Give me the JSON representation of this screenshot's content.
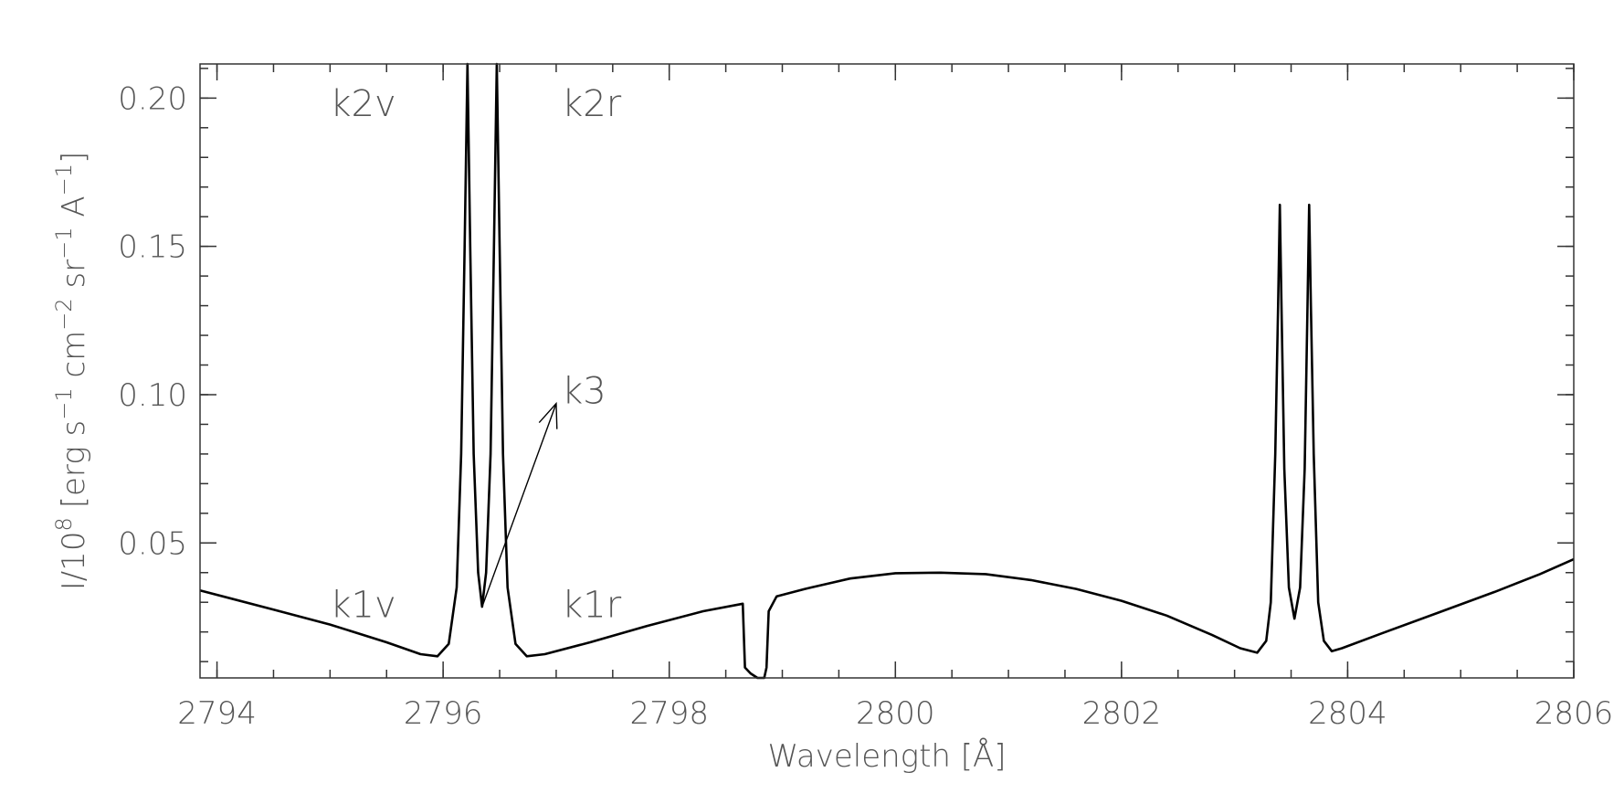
{
  "chart_data": {
    "type": "line",
    "title": "",
    "xlabel": "Wavelength [Å]",
    "ylabel": {
      "base": "I/10",
      "exp": "8",
      "units": "[erg s-1 cm-2 sr-1 A-1]"
    },
    "xlim": [
      2793.85,
      2806.0
    ],
    "ylim": [
      0.0045,
      0.2115
    ],
    "x_ticks": [
      {
        "value": 2794,
        "label": "2794"
      },
      {
        "value": 2796,
        "label": "2796"
      },
      {
        "value": 2798,
        "label": "2798"
      },
      {
        "value": 2800,
        "label": "2800"
      },
      {
        "value": 2802,
        "label": "2802"
      },
      {
        "value": 2804,
        "label": "2804"
      },
      {
        "value": 2806,
        "label": "2806"
      }
    ],
    "x_minor_step": 0.5,
    "y_ticks": [
      {
        "value": 0.05,
        "label": "0.05"
      },
      {
        "value": 0.1,
        "label": "0.10"
      },
      {
        "value": 0.15,
        "label": "0.15"
      },
      {
        "value": 0.2,
        "label": "0.20"
      }
    ],
    "y_minor_step": 0.01,
    "grid": false,
    "series": [
      {
        "points": [
          [
            2793.85,
            0.034
          ],
          [
            2794.5,
            0.0275
          ],
          [
            2795.0,
            0.0225
          ],
          [
            2795.5,
            0.0165
          ],
          [
            2795.8,
            0.0125
          ],
          [
            2795.95,
            0.0118
          ],
          [
            2796.05,
            0.016
          ],
          [
            2796.12,
            0.035
          ],
          [
            2796.16,
            0.08
          ],
          [
            2796.19,
            0.15
          ],
          [
            2796.215,
            0.2115
          ],
          [
            2796.24,
            0.15
          ],
          [
            2796.27,
            0.08
          ],
          [
            2796.31,
            0.04
          ],
          [
            2796.345,
            0.0285
          ],
          [
            2796.38,
            0.04
          ],
          [
            2796.42,
            0.08
          ],
          [
            2796.45,
            0.15
          ],
          [
            2796.475,
            0.2115
          ],
          [
            2796.5,
            0.15
          ],
          [
            2796.53,
            0.08
          ],
          [
            2796.57,
            0.035
          ],
          [
            2796.64,
            0.016
          ],
          [
            2796.74,
            0.0118
          ],
          [
            2796.9,
            0.0125
          ],
          [
            2797.3,
            0.0165
          ],
          [
            2797.8,
            0.022
          ],
          [
            2798.3,
            0.027
          ],
          [
            2798.65,
            0.0295
          ],
          [
            2798.67,
            0.008
          ],
          [
            2798.72,
            0.006
          ],
          [
            2798.78,
            0.0045
          ],
          [
            2798.84,
            0.0045
          ],
          [
            2798.86,
            0.008
          ],
          [
            2798.88,
            0.027
          ],
          [
            2798.95,
            0.032
          ],
          [
            2799.2,
            0.0345
          ],
          [
            2799.6,
            0.038
          ],
          [
            2800.0,
            0.0398
          ],
          [
            2800.4,
            0.04
          ],
          [
            2800.8,
            0.0395
          ],
          [
            2801.2,
            0.0375
          ],
          [
            2801.6,
            0.0345
          ],
          [
            2802.0,
            0.0305
          ],
          [
            2802.4,
            0.0255
          ],
          [
            2802.8,
            0.019
          ],
          [
            2803.05,
            0.0145
          ],
          [
            2803.2,
            0.013
          ],
          [
            2803.28,
            0.017
          ],
          [
            2803.32,
            0.03
          ],
          [
            2803.36,
            0.08
          ],
          [
            2803.385,
            0.13
          ],
          [
            2803.4,
            0.164
          ],
          [
            2803.415,
            0.13
          ],
          [
            2803.44,
            0.075
          ],
          [
            2803.48,
            0.035
          ],
          [
            2803.53,
            0.0245
          ],
          [
            2803.58,
            0.035
          ],
          [
            2803.62,
            0.075
          ],
          [
            2803.645,
            0.13
          ],
          [
            2803.66,
            0.164
          ],
          [
            2803.675,
            0.13
          ],
          [
            2803.7,
            0.08
          ],
          [
            2803.74,
            0.03
          ],
          [
            2803.79,
            0.017
          ],
          [
            2803.86,
            0.0135
          ],
          [
            2803.95,
            0.0145
          ],
          [
            2804.3,
            0.0195
          ],
          [
            2804.8,
            0.0265
          ],
          [
            2805.3,
            0.0335
          ],
          [
            2805.7,
            0.0395
          ],
          [
            2806.0,
            0.0445
          ]
        ]
      }
    ],
    "annotations": [
      {
        "text": "k2v",
        "x": 2795.0,
        "y": 0.194
      },
      {
        "text": "k2r",
        "x": 2797.05,
        "y": 0.194
      },
      {
        "text": "k3",
        "x": 2797.05,
        "y": 0.097
      },
      {
        "text": "k1v",
        "x": 2795.0,
        "y": 0.025
      },
      {
        "text": "k1r",
        "x": 2797.05,
        "y": 0.025
      }
    ],
    "arrow": {
      "from": [
        2796.345,
        0.0285
      ],
      "to": [
        2797.0,
        0.097
      ]
    }
  }
}
